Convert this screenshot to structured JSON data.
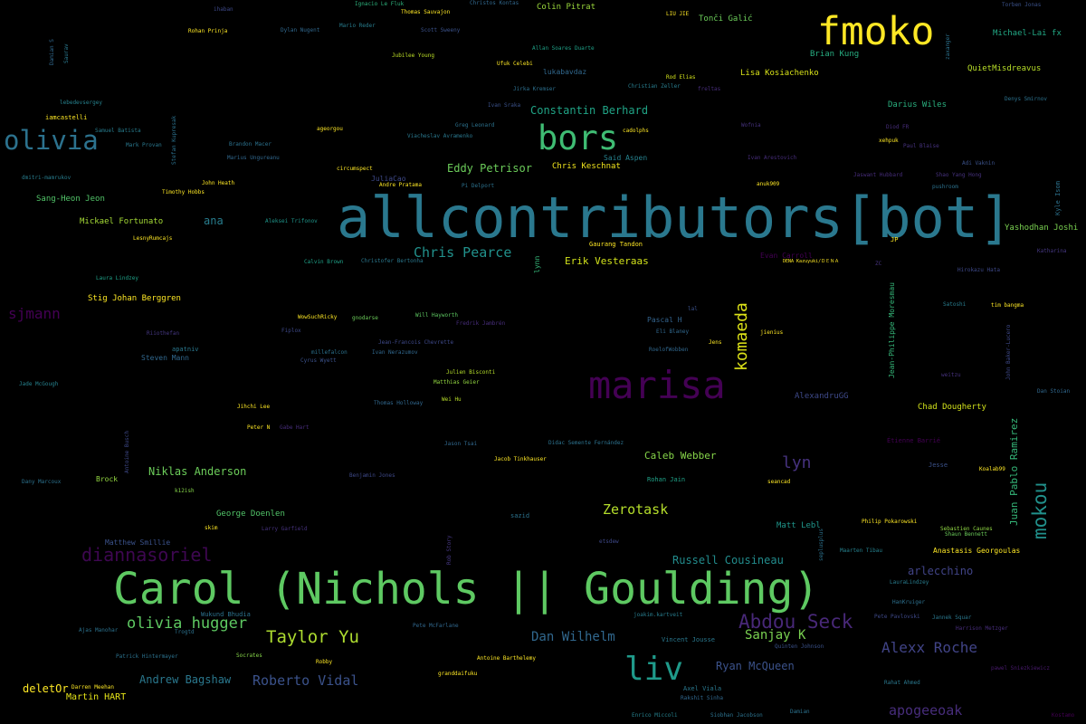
{
  "words": [
    {
      "text": "allcontributors[bot]",
      "color": "#2a788e"
    },
    {
      "text": "Carol (Nichols || Goulding)",
      "color": "#5ec962"
    },
    {
      "text": "marisa",
      "color": "#440154"
    },
    {
      "text": "fmoko",
      "color": "#fde725"
    },
    {
      "text": "bors",
      "color": "#3fbc73"
    },
    {
      "text": "liv",
      "color": "#1f9a8a"
    },
    {
      "text": "olivia",
      "color": "#2c728e"
    },
    {
      "text": "Abdou Seck",
      "color": "#482878"
    },
    {
      "text": "olivia hugger",
      "color": "#5ec962"
    },
    {
      "text": "Taylor Yu",
      "color": "#addc30"
    },
    {
      "text": "komaeda",
      "color": "#dde318"
    },
    {
      "text": "mokou",
      "color": "#21918c"
    },
    {
      "text": "diannasoriel",
      "color": "#3e0751"
    },
    {
      "text": "Alexx Roche",
      "color": "#414487"
    },
    {
      "text": "Roberto Vidal",
      "color": "#3b528b"
    },
    {
      "text": "apogeeoak",
      "color": "#472d7b"
    },
    {
      "text": "sjmann",
      "color": "#440154"
    },
    {
      "text": "Chris Pearce",
      "color": "#21918c"
    },
    {
      "text": "lyn",
      "color": "#46327e"
    },
    {
      "text": "Zerotask",
      "color": "#b5de2b"
    },
    {
      "text": "Dan Wilhelm",
      "color": "#31688e"
    },
    {
      "text": "Sanjay K",
      "color": "#7ad151"
    },
    {
      "text": "Niklas Anderson",
      "color": "#6ccd5a"
    },
    {
      "text": "Constantin Berhard",
      "color": "#20a486"
    },
    {
      "text": "Eddy Petrisor",
      "color": "#6ccd5a"
    },
    {
      "text": "Erik Vesteraas",
      "color": "#d2e21b"
    },
    {
      "text": "Andrew Bagshaw",
      "color": "#2a788e"
    },
    {
      "text": "Russell Cousineau",
      "color": "#228c8d"
    },
    {
      "text": "Ryan McQueen",
      "color": "#3b528b"
    },
    {
      "text": "arlecchino",
      "color": "#414487"
    },
    {
      "text": "Juan Pablo Ramirez",
      "color": "#35b779"
    },
    {
      "text": "Caleb Webber",
      "color": "#86d549"
    },
    {
      "text": "Martin HART",
      "color": "#e5e419"
    },
    {
      "text": "deletOr",
      "color": "#fde725"
    },
    {
      "text": "ana",
      "color": "#287d8e"
    },
    {
      "text": "Chris Keschnat",
      "color": "#f1e51d"
    },
    {
      "text": "Darius Wiles",
      "color": "#2ab07f"
    },
    {
      "text": "Lisa Kosiachenko",
      "color": "#d8e219"
    },
    {
      "text": "Michael-Lai fx",
      "color": "#22a884"
    },
    {
      "text": "QuietMisdreavus",
      "color": "#b8de29"
    },
    {
      "text": "Brian Kung",
      "color": "#27ad81"
    },
    {
      "text": "Colin Pitrat",
      "color": "#9bd93c"
    },
    {
      "text": "Tonči Galić",
      "color": "#6ccd5a"
    },
    {
      "text": "Yashodhan Joshi",
      "color": "#7ad151"
    },
    {
      "text": "Mickael Fortunato",
      "color": "#a5db36"
    },
    {
      "text": "Sang-Heon Jeon",
      "color": "#52c569"
    },
    {
      "text": "Stig Johan Berggren",
      "color": "#fde725"
    },
    {
      "text": "Chad Dougherty",
      "color": "#d2e21b"
    },
    {
      "text": "Matt Lebl",
      "color": "#1f968b"
    },
    {
      "text": "George Doenlen",
      "color": "#52c569"
    },
    {
      "text": "Anastasis Georgoulas",
      "color": "#fde725"
    },
    {
      "text": "Jean-Philippe Moresmau",
      "color": "#35b779"
    },
    {
      "text": "Brock",
      "color": "#93d741"
    },
    {
      "text": "Matthew Smillie",
      "color": "#3b528b"
    },
    {
      "text": "AlexandruGG",
      "color": "#3e4989"
    },
    {
      "text": "Said Aspen",
      "color": "#26828e"
    },
    {
      "text": "Steven Mann",
      "color": "#31688e"
    },
    {
      "text": "Pascal H",
      "color": "#33638d"
    },
    {
      "text": "Gaurang Tandon",
      "color": "#fde725"
    },
    {
      "text": "lukabavdaz",
      "color": "#31688e"
    },
    {
      "text": "iamcastelli",
      "color": "#fde725"
    },
    {
      "text": "lynn",
      "color": "#35b779"
    },
    {
      "text": "Vincent Jousse",
      "color": "#2a788e"
    },
    {
      "text": "Rohan Jain",
      "color": "#1fa187"
    },
    {
      "text": "Thomas Sauvajon",
      "color": "#fde725"
    },
    {
      "text": "Rohan Prinja",
      "color": "#fde725"
    },
    {
      "text": "Dylan Nugent",
      "color": "#31688e"
    },
    {
      "text": "Ignacio Le Fluk",
      "color": "#2db27d"
    },
    {
      "text": "Christos Kontas",
      "color": "#31688e"
    },
    {
      "text": "Mario Reder",
      "color": "#287d8e"
    },
    {
      "text": "Scott Sweeny",
      "color": "#3b528b"
    },
    {
      "text": "Jubilee Young",
      "color": "#bddf26"
    },
    {
      "text": "Ufuk Celebi",
      "color": "#fde725"
    },
    {
      "text": "Allan Soares Duarte",
      "color": "#1fa187"
    },
    {
      "text": "Rod Elias",
      "color": "#d2e21b"
    },
    {
      "text": "Christian Zeller",
      "color": "#287d8e"
    },
    {
      "text": "Jirka Kremser",
      "color": "#2d708e"
    },
    {
      "text": "LIU JIE",
      "color": "#fde725"
    },
    {
      "text": "Torben Jonas",
      "color": "#3b528b"
    },
    {
      "text": "Denys Smirnov",
      "color": "#2c728e"
    },
    {
      "text": "Adi Vaknin",
      "color": "#3b528b"
    },
    {
      "text": "Shao Yang Hong",
      "color": "#46327e"
    },
    {
      "text": "pushroom",
      "color": "#2c728e"
    },
    {
      "text": "Kyle Isom",
      "color": "#2c728e"
    },
    {
      "text": "Katharina",
      "color": "#453781"
    },
    {
      "text": "Hirokazu Hata",
      "color": "#3e4989"
    },
    {
      "text": "Satoshi",
      "color": "#287d8e"
    },
    {
      "text": "tim bangma",
      "color": "#fde725"
    },
    {
      "text": "Dan Stoian",
      "color": "#31688e"
    },
    {
      "text": "Étienne Barrié",
      "color": "#440154"
    },
    {
      "text": "Jesse",
      "color": "#3b528b"
    },
    {
      "text": "Koalab99",
      "color": "#fde725"
    },
    {
      "text": "Sebastien Caunes",
      "color": "#90d743"
    },
    {
      "text": "Shaun Bennett",
      "color": "#6ccd5a"
    },
    {
      "text": "Philip Pokarowski",
      "color": "#fde725"
    },
    {
      "text": "Maarten Tibau",
      "color": "#26828e"
    },
    {
      "text": "LauraLindzey",
      "color": "#287d8e"
    },
    {
      "text": "HanKruiger",
      "color": "#2d708e"
    },
    {
      "text": "Jannek Squar",
      "color": "#2a788e"
    },
    {
      "text": "Harrison Metzger",
      "color": "#472d7b"
    },
    {
      "text": "Pete Pavlovski",
      "color": "#3e4989"
    },
    {
      "text": "pawel Sniezkiewicz",
      "color": "#481a6c"
    },
    {
      "text": "Rahat Ahmed",
      "color": "#2a788e"
    },
    {
      "text": "Kostamo",
      "color": "#440154"
    },
    {
      "text": "Ajas Manohar",
      "color": "#2c728e"
    },
    {
      "text": "Patrick Hintermayer",
      "color": "#2c728e"
    },
    {
      "text": "Wukund Bhudia",
      "color": "#2c728e"
    },
    {
      "text": "Trogtd",
      "color": "#2c728e"
    },
    {
      "text": "Socrates",
      "color": "#86d549"
    },
    {
      "text": "Robby",
      "color": "#fde725"
    },
    {
      "text": "granddaifuku",
      "color": "#fde725"
    },
    {
      "text": "Antoine Barthelemy",
      "color": "#fde725"
    },
    {
      "text": "Pete McFarlane",
      "color": "#31688e"
    },
    {
      "text": "joakim.kartveit",
      "color": "#287d8e"
    },
    {
      "text": "Darren Meehan",
      "color": "#fde725"
    },
    {
      "text": "Axel Viala",
      "color": "#2a788e"
    },
    {
      "text": "Rakshit Sinha",
      "color": "#31688e"
    },
    {
      "text": "Enrico Miccoli",
      "color": "#26828e"
    },
    {
      "text": "Siobhan Jacobson",
      "color": "#2c728e"
    },
    {
      "text": "Damian",
      "color": "#2c728e"
    },
    {
      "text": "Quinten Johnson",
      "color": "#3b528b"
    },
    {
      "text": "Benjamin Jones",
      "color": "#3e4989"
    },
    {
      "text": "k12ish",
      "color": "#86d549"
    },
    {
      "text": "Dany Marcoux",
      "color": "#2c728e"
    },
    {
      "text": "skim",
      "color": "#fde725"
    },
    {
      "text": "Larry Garfield",
      "color": "#46327e"
    },
    {
      "text": "sazid",
      "color": "#2c728e"
    },
    {
      "text": "Rob Story",
      "color": "#453781"
    },
    {
      "text": "etsdew",
      "color": "#3e4989"
    },
    {
      "text": "Jason Tsai",
      "color": "#31688e"
    },
    {
      "text": "Jacob Tinkhauser",
      "color": "#fde725"
    },
    {
      "text": "Didac Semente Fernández",
      "color": "#2c728e"
    },
    {
      "text": "seancad",
      "color": "#fde725"
    },
    {
      "text": "Antoine Busch",
      "color": "#3e4989"
    },
    {
      "text": "Jade McGough",
      "color": "#26828e"
    },
    {
      "text": "Jihchi Lee",
      "color": "#fde725"
    },
    {
      "text": "Peter N",
      "color": "#fde725"
    },
    {
      "text": "Gabe Hart",
      "color": "#472d7b"
    },
    {
      "text": "Thomas Holloway",
      "color": "#31688e"
    },
    {
      "text": "Wei Hu",
      "color": "#b8de29"
    },
    {
      "text": "Julien Bisconti",
      "color": "#b5de2b"
    },
    {
      "text": "Matthias Geier",
      "color": "#93d741"
    },
    {
      "text": "Jean-Francois Chevrette",
      "color": "#3e4989"
    },
    {
      "text": "Ivan Nerazumov",
      "color": "#31688e"
    },
    {
      "text": "millefalcon",
      "color": "#2c728e"
    },
    {
      "text": "Cyrus Wyett",
      "color": "#3b528b"
    },
    {
      "text": "apatniv",
      "color": "#2a788e"
    },
    {
      "text": "Riiothefan",
      "color": "#453781"
    },
    {
      "text": "Fiplox",
      "color": "#3e4989"
    },
    {
      "text": "WowSuchRicky",
      "color": "#fde725"
    },
    {
      "text": "gnodarse",
      "color": "#6ccd5a"
    },
    {
      "text": "Will Hayworth",
      "color": "#5ec962"
    },
    {
      "text": "Fredrik Jambrén",
      "color": "#472d7b"
    },
    {
      "text": "Eli Blaney",
      "color": "#31688e"
    },
    {
      "text": "Jens",
      "color": "#fde725"
    },
    {
      "text": "RoelofWobben",
      "color": "#31688e"
    },
    {
      "text": "jienius",
      "color": "#fde725"
    },
    {
      "text": "lal",
      "color": "#3b528b"
    },
    {
      "text": "Laura Lindzey",
      "color": "#1fa187"
    },
    {
      "text": "LesnyRumcajs",
      "color": "#fde725"
    },
    {
      "text": "Calvin Brown",
      "color": "#1fa187"
    },
    {
      "text": "Christofer Bertonha",
      "color": "#2a788e"
    },
    {
      "text": "Evan Carroll",
      "color": "#440154"
    },
    {
      "text": "DENA Kazuyuki/ＤＥＮＡ",
      "color": "#fde725"
    },
    {
      "text": "JP",
      "color": "#fde725"
    },
    {
      "text": "ZC",
      "color": "#46327e"
    },
    {
      "text": "Aleksei Trifonov",
      "color": "#1f968b"
    },
    {
      "text": "Timothy Hobbs",
      "color": "#fde725"
    },
    {
      "text": "John Heath",
      "color": "#fde725"
    },
    {
      "text": "Marius Ungureanu",
      "color": "#31688e"
    },
    {
      "text": "Brandon Macer",
      "color": "#2c728e"
    },
    {
      "text": "Mark Provan",
      "color": "#2a788e"
    },
    {
      "text": "Samuel Batista",
      "color": "#287d8e"
    },
    {
      "text": "Stefan Kupresak",
      "color": "#2c728e"
    },
    {
      "text": "dmitri-mamrukov",
      "color": "#287d8e"
    },
    {
      "text": "lebedevsergey",
      "color": "#26828e"
    },
    {
      "text": "ageorgou",
      "color": "#fde725"
    },
    {
      "text": "circumspect",
      "color": "#fde725"
    },
    {
      "text": "JuliaCao",
      "color": "#3e4989"
    },
    {
      "text": "Andre Pratama",
      "color": "#fde725"
    },
    {
      "text": "Pi Delport",
      "color": "#2c728e"
    },
    {
      "text": "Greg Leonard",
      "color": "#2c728e"
    },
    {
      "text": "Viacheslav Avramenko",
      "color": "#2a788e"
    },
    {
      "text": "Ivan Sraka",
      "color": "#3b528b"
    },
    {
      "text": "cadolphs",
      "color": "#fde725"
    },
    {
      "text": "Wofnia",
      "color": "#46327e"
    },
    {
      "text": "xehpuk",
      "color": "#fde725"
    },
    {
      "text": "Paul Blaise",
      "color": "#46327e"
    },
    {
      "text": "Diod FR",
      "color": "#472d7b"
    },
    {
      "text": "Ivan Arestovich",
      "color": "#472d7b"
    },
    {
      "text": "anuk909",
      "color": "#fde725"
    },
    {
      "text": "Jaswant Hubbard",
      "color": "#472d7b"
    },
    {
      "text": "freltas",
      "color": "#472d7b"
    },
    {
      "text": "Saurav",
      "color": "#2a788e"
    },
    {
      "text": "Damian S",
      "color": "#31688e"
    },
    {
      "text": "zaxanger",
      "color": "#2c728e"
    },
    {
      "text": "John Baker-Lucero",
      "color": "#3e4989"
    },
    {
      "text": "weitzu",
      "color": "#46327e"
    },
    {
      "text": "seplusplus",
      "color": "#2c728e"
    },
    {
      "text": "ihaban",
      "color": "#3e4989"
    }
  ]
}
